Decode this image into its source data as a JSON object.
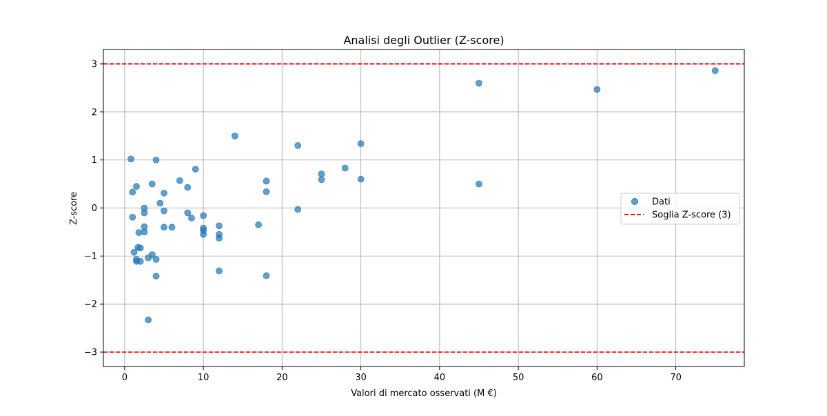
{
  "chart_data": {
    "type": "scatter",
    "title": "Analisi degli Outlier (Z-score)",
    "xlabel": "Valori di mercato osservati (M €)",
    "ylabel": "Z-score",
    "xlim": [
      -2.7,
      78.7
    ],
    "ylim": [
      -3.3,
      3.3
    ],
    "xticks": [
      0,
      10,
      20,
      30,
      40,
      50,
      60,
      70
    ],
    "yticks": [
      -3,
      -2,
      -1,
      0,
      1,
      2,
      3
    ],
    "xtick_labels": [
      "0",
      "10",
      "20",
      "30",
      "40",
      "50",
      "60",
      "70"
    ],
    "ytick_labels": [
      "−3",
      "−2",
      "−1",
      "0",
      "1",
      "2",
      "3"
    ],
    "grid": true,
    "legend_position": "center-right",
    "series": [
      {
        "name": "Dati",
        "kind": "scatter",
        "color": "#1f77b4",
        "points": [
          [
            0.8,
            1.02
          ],
          [
            1.0,
            0.33
          ],
          [
            1.0,
            -0.19
          ],
          [
            1.2,
            -0.92
          ],
          [
            1.5,
            0.45
          ],
          [
            1.5,
            -1.07
          ],
          [
            1.5,
            -1.11
          ],
          [
            1.7,
            -0.82
          ],
          [
            1.8,
            -0.51
          ],
          [
            2.0,
            -0.83
          ],
          [
            2.0,
            -1.11
          ],
          [
            2.5,
            0.0
          ],
          [
            2.5,
            -0.1
          ],
          [
            2.5,
            -0.39
          ],
          [
            2.5,
            -0.5
          ],
          [
            3.0,
            -1.04
          ],
          [
            3.0,
            -2.33
          ],
          [
            3.5,
            0.5
          ],
          [
            3.5,
            -0.97
          ],
          [
            4.0,
            1.0
          ],
          [
            4.0,
            -1.07
          ],
          [
            4.0,
            -1.42
          ],
          [
            4.5,
            0.1
          ],
          [
            5.0,
            0.31
          ],
          [
            5.0,
            -0.06
          ],
          [
            5.0,
            -0.4
          ],
          [
            6.0,
            -0.4
          ],
          [
            7.0,
            0.57
          ],
          [
            8.0,
            0.43
          ],
          [
            8.0,
            -0.1
          ],
          [
            8.5,
            -0.21
          ],
          [
            9.0,
            0.81
          ],
          [
            10.0,
            -0.16
          ],
          [
            10.0,
            -0.42
          ],
          [
            10.0,
            -0.47
          ],
          [
            10.0,
            -0.55
          ],
          [
            12.0,
            -0.37
          ],
          [
            12.0,
            -0.55
          ],
          [
            12.0,
            -0.63
          ],
          [
            12.0,
            -1.31
          ],
          [
            14.0,
            1.5
          ],
          [
            17.0,
            -0.35
          ],
          [
            18.0,
            0.56
          ],
          [
            18.0,
            0.34
          ],
          [
            18.0,
            -1.41
          ],
          [
            22.0,
            1.3
          ],
          [
            22.0,
            -0.03
          ],
          [
            25.0,
            0.71
          ],
          [
            25.0,
            0.59
          ],
          [
            28.0,
            0.83
          ],
          [
            30.0,
            1.34
          ],
          [
            30.0,
            0.6
          ],
          [
            45.0,
            2.6
          ],
          [
            45.0,
            0.5
          ],
          [
            60.0,
            2.47
          ],
          [
            75.0,
            2.86
          ]
        ]
      },
      {
        "name": "Soglia Z-score (3)",
        "kind": "hline",
        "color": "#ff0000",
        "values": [
          3,
          -3
        ]
      }
    ]
  }
}
